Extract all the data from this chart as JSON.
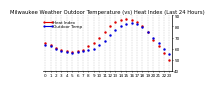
{
  "title": "Milwaukee Weather Outdoor Temperature (vs) Heat Index (Last 24 Hours)",
  "x_labels": [
    "0",
    "1",
    "2",
    "3",
    "4",
    "5",
    "6",
    "7",
    "8",
    "9",
    "10",
    "11",
    "12",
    "13",
    "14",
    "15",
    "16",
    "17",
    "18",
    "19",
    "20",
    "21",
    "22",
    "23"
  ],
  "temp_values": [
    63,
    62,
    60,
    58,
    57,
    56,
    57,
    58,
    59,
    60,
    63,
    67,
    72,
    77,
    80,
    82,
    83,
    82,
    79,
    75,
    70,
    65,
    60,
    55
  ],
  "heat_values": [
    65,
    63,
    61,
    59,
    58,
    57,
    58,
    59,
    62,
    65,
    70,
    75,
    80,
    84,
    86,
    87,
    86,
    84,
    80,
    75,
    68,
    62,
    56,
    50
  ],
  "temp_color": "#0000dd",
  "heat_color": "#dd0000",
  "ylim_min": 40,
  "ylim_max": 90,
  "ytick_step": 10,
  "background_color": "#ffffff",
  "grid_color": "#aaaaaa",
  "title_fontsize": 3.8,
  "tick_fontsize": 3.0,
  "legend_fontsize": 3.0,
  "markersize": 1.5,
  "legend_temp": "Outdoor Temp",
  "legend_heat": "Heat Index"
}
